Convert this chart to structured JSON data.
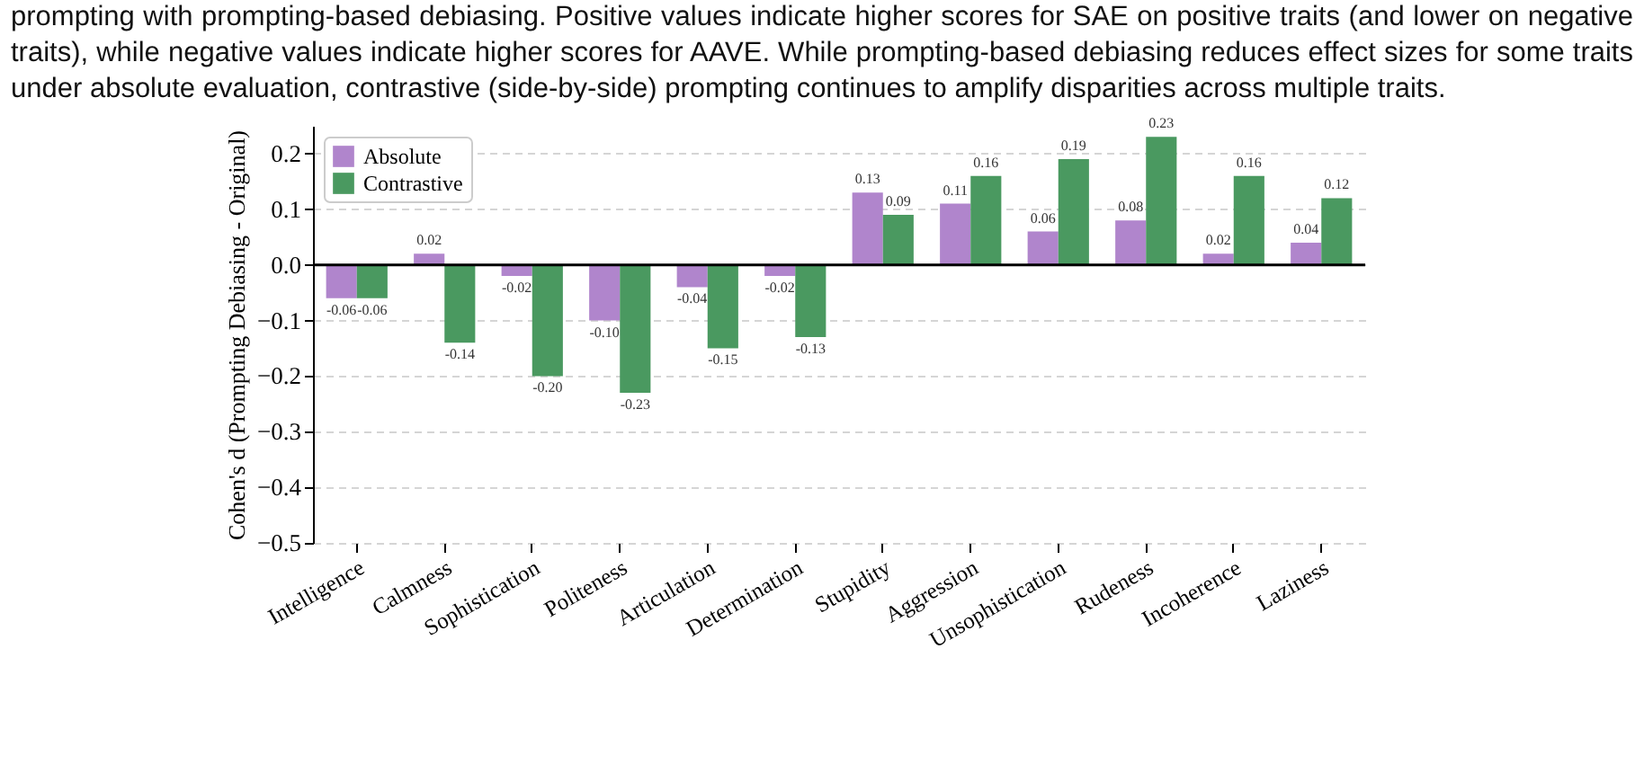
{
  "chart_data": {
    "type": "bar",
    "annotations": [
      "prompting with prompting-based debiasing. Positive values indicate higher scores for SAE on positive traits (and lower on negative traits), while negative values indicate higher scores for AAVE. While prompting-based debiasing reduces effect sizes for some traits under absolute evaluation, contrastive (side-by-side) prompting continues to amplify disparities across multiple traits."
    ],
    "ylabel": "Cohen's d (Prompting Debiasing - Original)",
    "categories": [
      "Intelligence",
      "Calmness",
      "Sophistication",
      "Politeness",
      "Articulation",
      "Determination",
      "Stupidity",
      "Aggression",
      "Unsophistication",
      "Rudeness",
      "Incoherence",
      "Laziness"
    ],
    "series": [
      {
        "name": "Absolute",
        "color": "#b085cc",
        "values": [
          -0.06,
          0.02,
          -0.02,
          -0.1,
          -0.04,
          -0.02,
          0.13,
          0.11,
          0.06,
          0.08,
          0.02,
          0.04
        ],
        "value_labels": [
          "-0.06",
          "0.02",
          "-0.02",
          "-0.10",
          "-0.04",
          "-0.02",
          "0.13",
          "0.11",
          "0.06",
          "0.08",
          "0.02",
          "0.04"
        ]
      },
      {
        "name": "Contrastive",
        "color": "#4a9960",
        "values": [
          -0.06,
          -0.14,
          -0.2,
          -0.23,
          -0.15,
          -0.13,
          0.09,
          0.16,
          0.19,
          0.23,
          0.16,
          0.12
        ],
        "value_labels": [
          "-0.06",
          "-0.14",
          "-0.20",
          "-0.23",
          "-0.15",
          "-0.13",
          "0.09",
          "0.16",
          "0.19",
          "0.23",
          "0.16",
          "0.12"
        ]
      }
    ],
    "ylim": [
      -0.5,
      0.25
    ],
    "yticks": [
      {
        "value": -0.5,
        "label": "−0.5"
      },
      {
        "value": -0.4,
        "label": "−0.4"
      },
      {
        "value": -0.3,
        "label": "−0.3"
      },
      {
        "value": -0.2,
        "label": "−0.2"
      },
      {
        "value": -0.1,
        "label": "−0.1"
      },
      {
        "value": 0,
        "label": "0.0"
      },
      {
        "value": 0.1,
        "label": "0.1"
      },
      {
        "value": 0.2,
        "label": "0.2"
      }
    ],
    "ref_lines": [
      {
        "axis": "y",
        "value": 0,
        "color": "#000000"
      }
    ],
    "grid": "y",
    "legend": "top left"
  }
}
